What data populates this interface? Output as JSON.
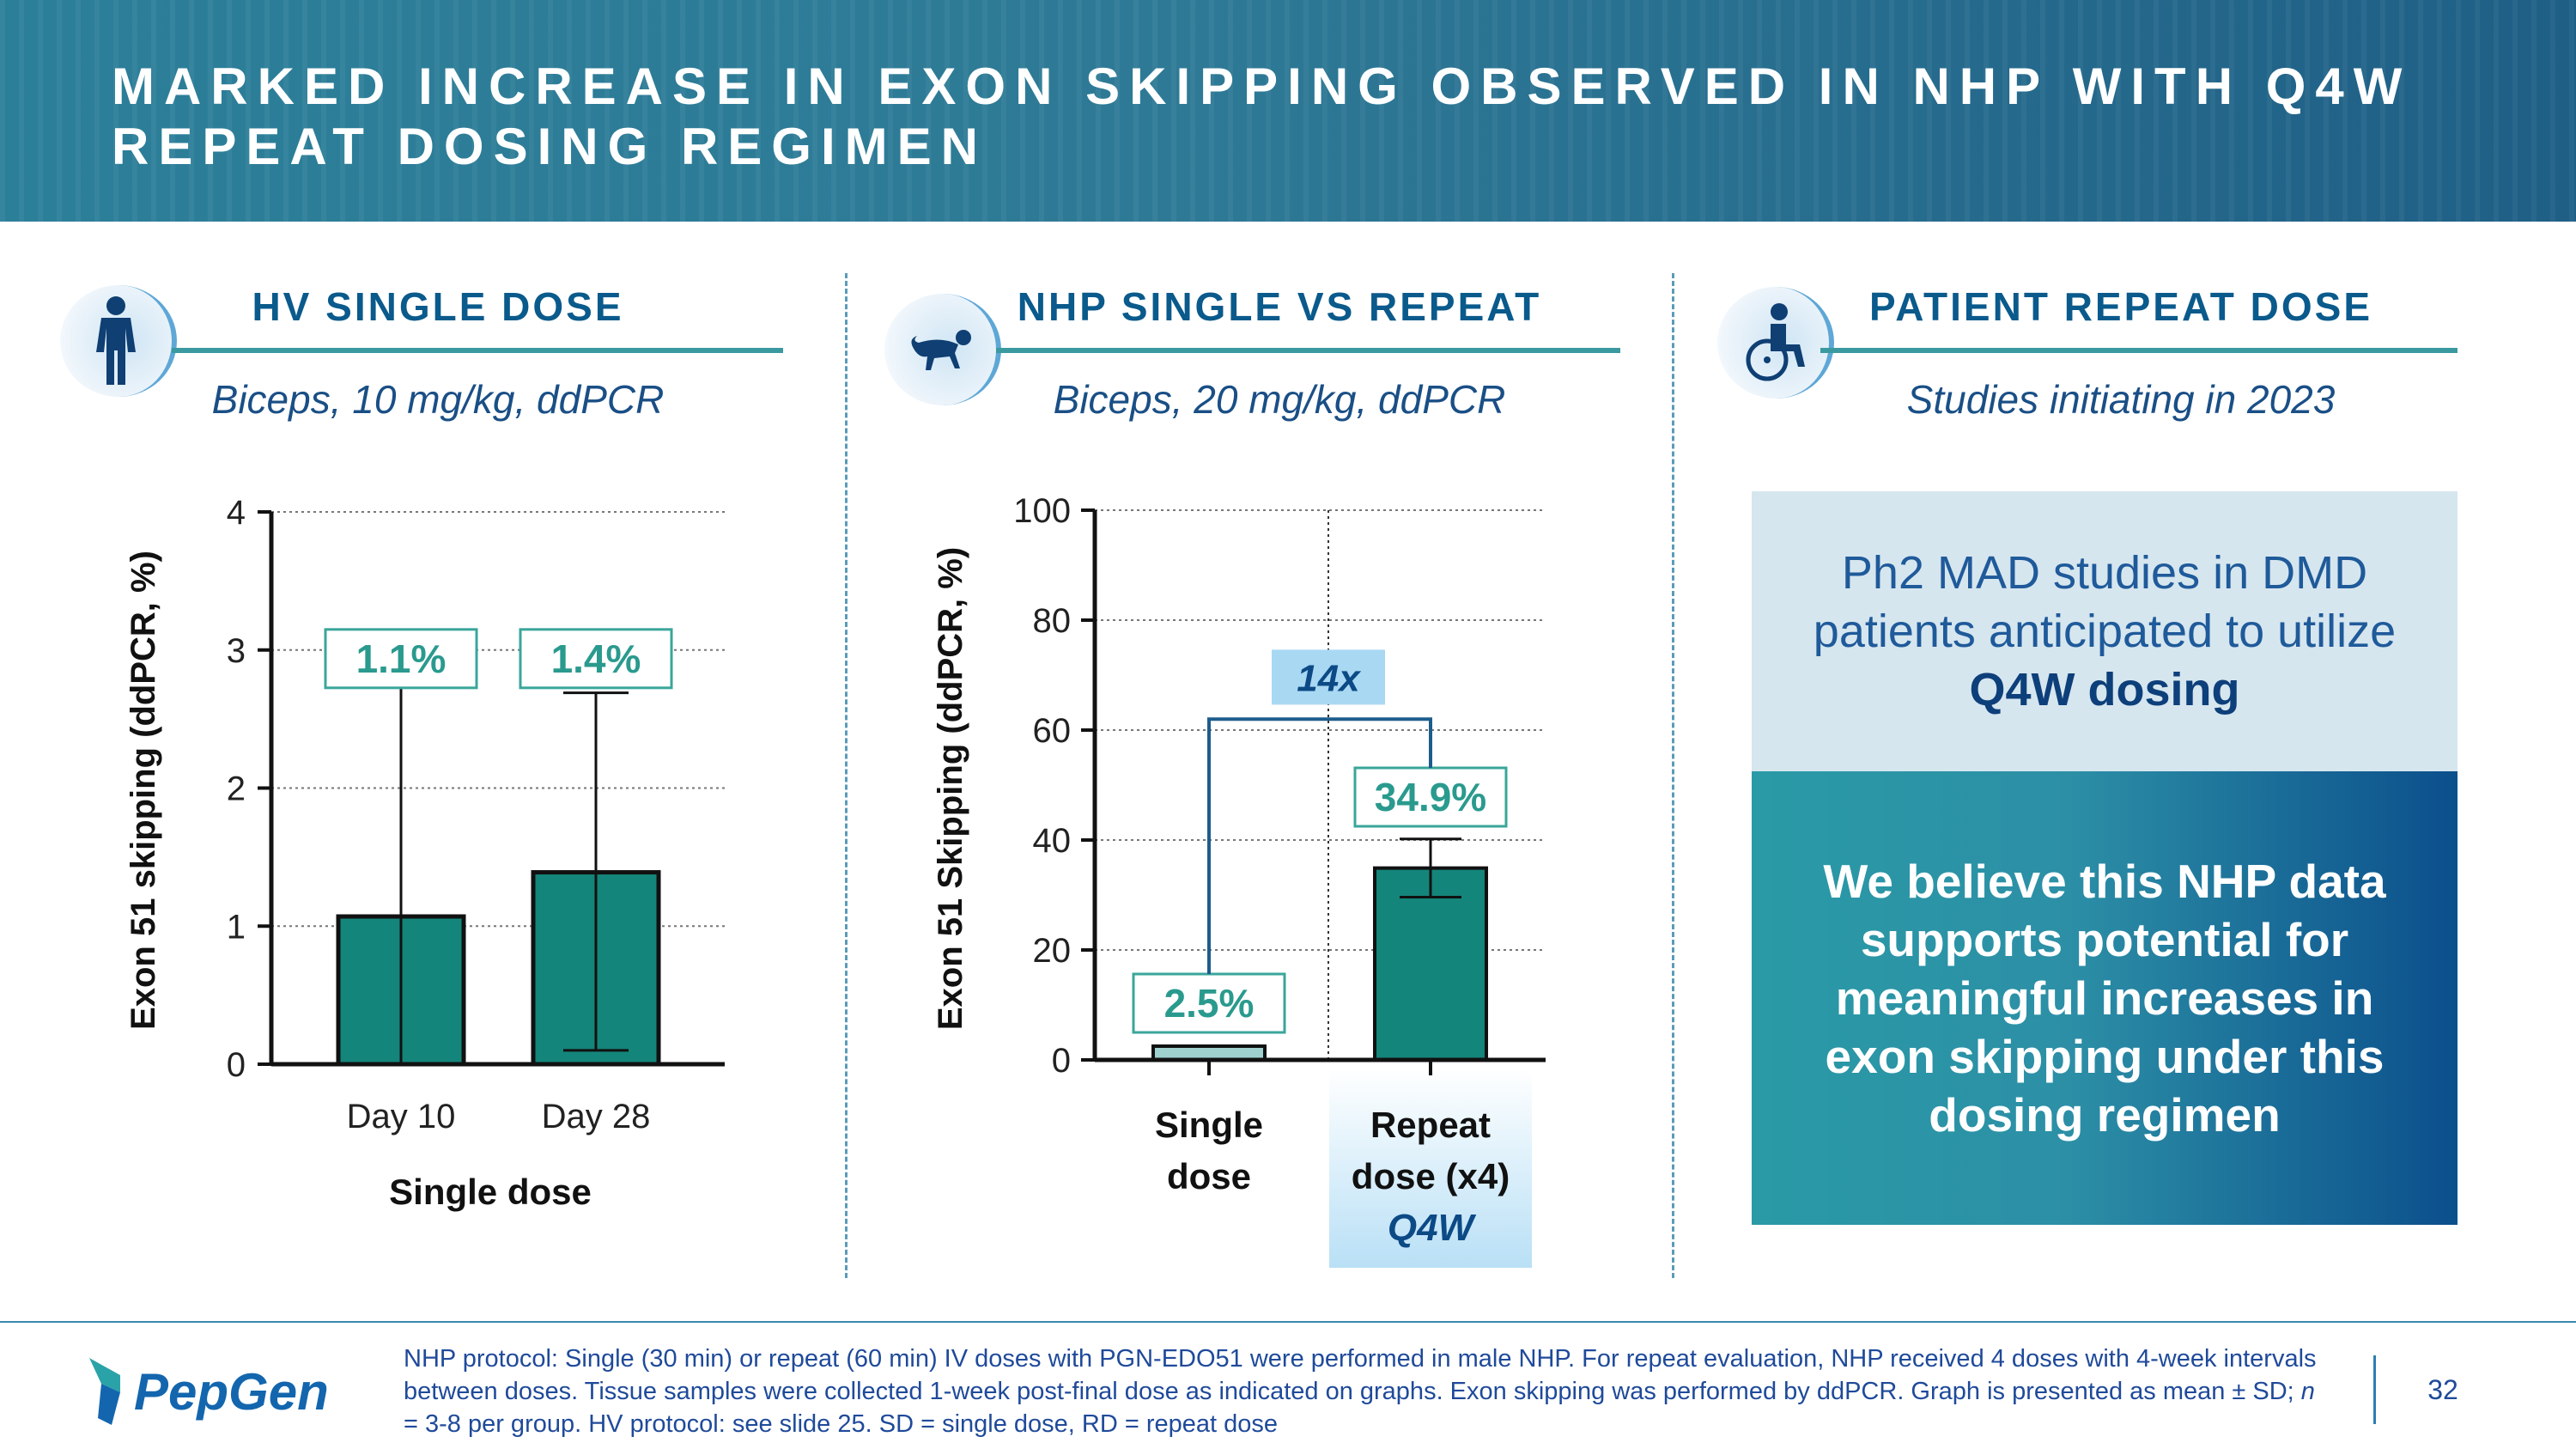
{
  "header": {
    "title": "MARKED INCREASE IN EXON SKIPPING OBSERVED IN NHP WITH Q4W REPEAT DOSING REGIMEN"
  },
  "panels": [
    {
      "icon": "person-icon",
      "title": "HV SINGLE DOSE",
      "subtitle": "Biceps, 10 mg/kg, ddPCR"
    },
    {
      "icon": "monkey-icon",
      "title": "NHP SINGLE VS REPEAT",
      "subtitle": "Biceps, 20 mg/kg, ddPCR"
    },
    {
      "icon": "wheelchair-icon",
      "title": "PATIENT REPEAT DOSE",
      "subtitle": "Studies initiating in 2023"
    }
  ],
  "chart_data": [
    {
      "type": "bar",
      "categories": [
        "Day 10",
        "Day 28"
      ],
      "values": [
        1.07,
        1.39
      ],
      "error_upper": [
        2.73,
        2.69
      ],
      "error_lower": [
        0,
        0.1
      ],
      "data_labels": [
        "1.1%",
        "1.4%"
      ],
      "ylabel": "Exon 51 skipping (ddPCR, %)",
      "xlabel": "Single dose",
      "ylim": [
        0,
        4
      ],
      "yticks": [
        "0",
        "1",
        "2",
        "3",
        "4"
      ],
      "grid": true,
      "color": "#14857a"
    },
    {
      "type": "bar",
      "categories": [
        "Single dose",
        "Repeat dose (x4)"
      ],
      "category_lines": [
        [
          "Single",
          "dose"
        ],
        [
          "Repeat",
          "dose (x4)"
        ]
      ],
      "values": [
        2.5,
        34.9
      ],
      "error_upper": [
        2.5,
        40.2
      ],
      "error_lower": [
        2.5,
        29.6
      ],
      "data_labels": [
        "2.5%",
        "34.9%"
      ],
      "ylabel": "Exon 51 Skipping (ddPCR, %)",
      "ylim": [
        0,
        100
      ],
      "yticks": [
        "0",
        "20",
        "40",
        "60",
        "80",
        "100"
      ],
      "grid": true,
      "comparison_label": "14x",
      "comparison_bracket_at": 62,
      "highlight_label": "Q4W",
      "color": "#14857a"
    }
  ],
  "callout": {
    "top_text": "Ph2 MAD studies in DMD patients anticipated to utilize",
    "top_bold": "Q4W dosing",
    "bottom_text": "We believe this NHP data supports potential for meaningful increases in exon skipping under this dosing regimen"
  },
  "footer": {
    "logo_text": "PepGen",
    "note_part1": "NHP protocol: Single (30 min) or repeat (60 min) IV doses with PGN-EDO51 were performed in male NHP. For repeat evaluation, NHP received 4 doses with 4-week intervals between doses. Tissue samples were collected 1-week post-final dose as indicated on graphs. Exon skipping was performed by ddPCR. Graph is presented as mean ± SD; ",
    "note_n": "n",
    "note_part2": " = 3-8 per group. HV protocol: see slide 25. SD = single dose, RD = repeat dose",
    "page_number": "32"
  },
  "colors": {
    "bar": "#14857a",
    "label_text": "#2a9a8e",
    "label_border": "#3aa69a",
    "bracket": "#1c5d8c",
    "comparison_fill": "#a9d8f3",
    "comparison_text": "#0c4a86"
  }
}
